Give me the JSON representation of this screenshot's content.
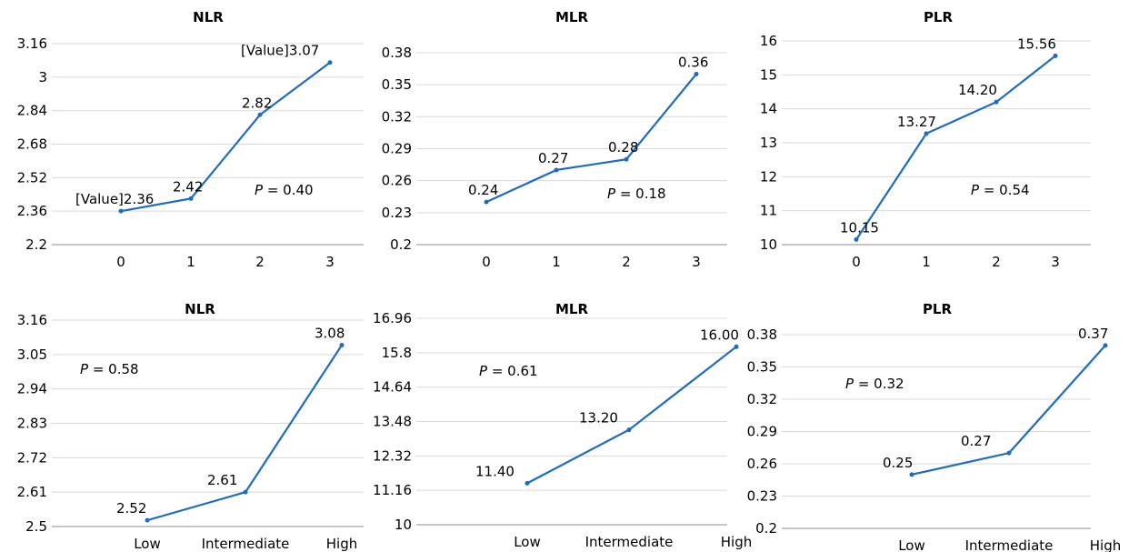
{
  "colors": {
    "series": "#1f6bbf",
    "grid": "#d9d9d9",
    "axis": "#8c8c8c"
  },
  "chart_data": [
    {
      "type": "line",
      "title": "NLR",
      "categories": [
        "0",
        "1",
        "2",
        "3"
      ],
      "values": [
        2.36,
        2.42,
        2.82,
        3.07
      ],
      "data_labels": [
        "[Value]2.36",
        "2.42",
        "2.82",
        "[Value]3.07"
      ],
      "yticks": [
        "2.2",
        "2.36",
        "2.52",
        "2.68",
        "2.84",
        "3",
        "3.16"
      ],
      "ylim": [
        2.2,
        3.16
      ],
      "p_prefix": "P",
      "p_value": " = 0.40",
      "grid": true,
      "legend": "none"
    },
    {
      "type": "line",
      "title": "MLR",
      "categories": [
        "0",
        "1",
        "2",
        "3"
      ],
      "values": [
        0.24,
        0.27,
        0.28,
        0.36
      ],
      "data_labels": [
        "0.24",
        "0.27",
        "0.28",
        "0.36"
      ],
      "yticks": [
        "0.2",
        "0.23",
        "0.26",
        "0.29",
        "0.32",
        "0.35",
        "0.38"
      ],
      "ylim": [
        0.2,
        0.38
      ],
      "p_prefix": "P",
      "p_value": " = 0.18",
      "grid": true,
      "legend": "none"
    },
    {
      "type": "line",
      "title": "PLR",
      "categories": [
        "0",
        "1",
        "2",
        "3"
      ],
      "values": [
        10.15,
        13.27,
        14.2,
        15.56
      ],
      "data_labels": [
        "10.15",
        "13.27",
        "14.20",
        "15.56"
      ],
      "yticks": [
        "10",
        "11",
        "12",
        "13",
        "14",
        "15",
        "16"
      ],
      "ylim": [
        10,
        16
      ],
      "p_prefix": "P",
      "p_value": " = 0.54",
      "grid": true,
      "legend": "none"
    },
    {
      "type": "line",
      "title": "NLR",
      "categories": [
        "Low",
        "Intermediate",
        "High"
      ],
      "values": [
        2.52,
        2.61,
        3.08
      ],
      "data_labels": [
        "2.52",
        "2.61",
        "3.08"
      ],
      "yticks": [
        "2.5",
        "2.61",
        "2.72",
        "2.83",
        "2.94",
        "3.05",
        "3.16"
      ],
      "ylim": [
        2.5,
        3.16
      ],
      "p_prefix": "P",
      "p_value": " = 0.58",
      "grid": true,
      "legend": "none"
    },
    {
      "type": "line",
      "title": "MLR",
      "categories": [
        "Low",
        "Intermediate",
        "High"
      ],
      "values": [
        11.4,
        13.2,
        16.0
      ],
      "data_labels": [
        "11.40",
        "13.20",
        "16.00"
      ],
      "yticks": [
        "10",
        "11.16",
        "12.32",
        "13.48",
        "14.64",
        "15.8",
        "16.96"
      ],
      "ylim": [
        10,
        16.96
      ],
      "p_prefix": "P",
      "p_value": " = 0.61",
      "grid": true,
      "legend": "none"
    },
    {
      "type": "line",
      "title": "PLR",
      "categories": [
        "Low",
        "Intermediate",
        "High"
      ],
      "values": [
        0.25,
        0.27,
        0.37
      ],
      "data_labels": [
        "0.25",
        "0.27",
        "0.37"
      ],
      "yticks": [
        "0.2",
        "0.23",
        "0.26",
        "0.29",
        "0.32",
        "0.35",
        "0.38"
      ],
      "ylim": [
        0.2,
        0.38
      ],
      "p_prefix": "P",
      "p_value": " = 0.32",
      "grid": true,
      "legend": "none"
    }
  ]
}
